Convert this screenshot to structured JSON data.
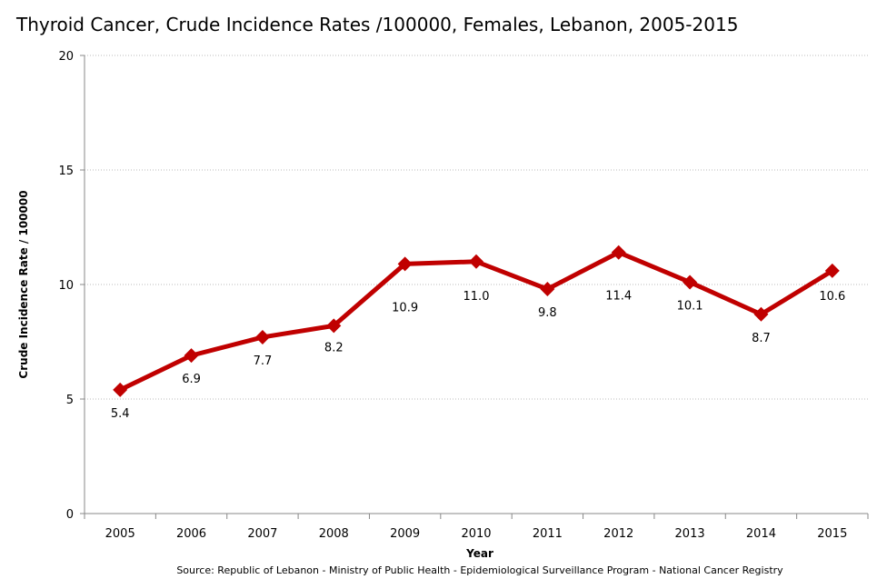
{
  "chart_data": {
    "type": "line",
    "title": "Thyroid Cancer, Crude Incidence Rates /100000,  Females, Lebanon, 2005-2015",
    "xlabel": "Year",
    "ylabel": "Crude Incidence Rate / 100000",
    "categories": [
      "2005",
      "2006",
      "2007",
      "2008",
      "2009",
      "2010",
      "2011",
      "2012",
      "2013",
      "2014",
      "2015"
    ],
    "series": [
      {
        "name": "Females",
        "values": [
          5.4,
          6.9,
          7.7,
          8.2,
          10.9,
          11.0,
          9.8,
          11.4,
          10.1,
          8.7,
          10.6
        ],
        "labels": [
          "5.4",
          "6.9",
          "7.7",
          "8.2",
          "10.9",
          "11.0",
          "9.8",
          "11.4",
          "10.1",
          "8.7",
          "10.6"
        ],
        "color": "#c00000"
      }
    ],
    "ylim": [
      0,
      20
    ],
    "yticks": [
      "0",
      "5",
      "10",
      "15",
      "20"
    ],
    "grid": true,
    "source": "Source:  Republic of Lebanon - Ministry of Public Health - Epidemiological Surveillance Program - National Cancer Registry"
  }
}
